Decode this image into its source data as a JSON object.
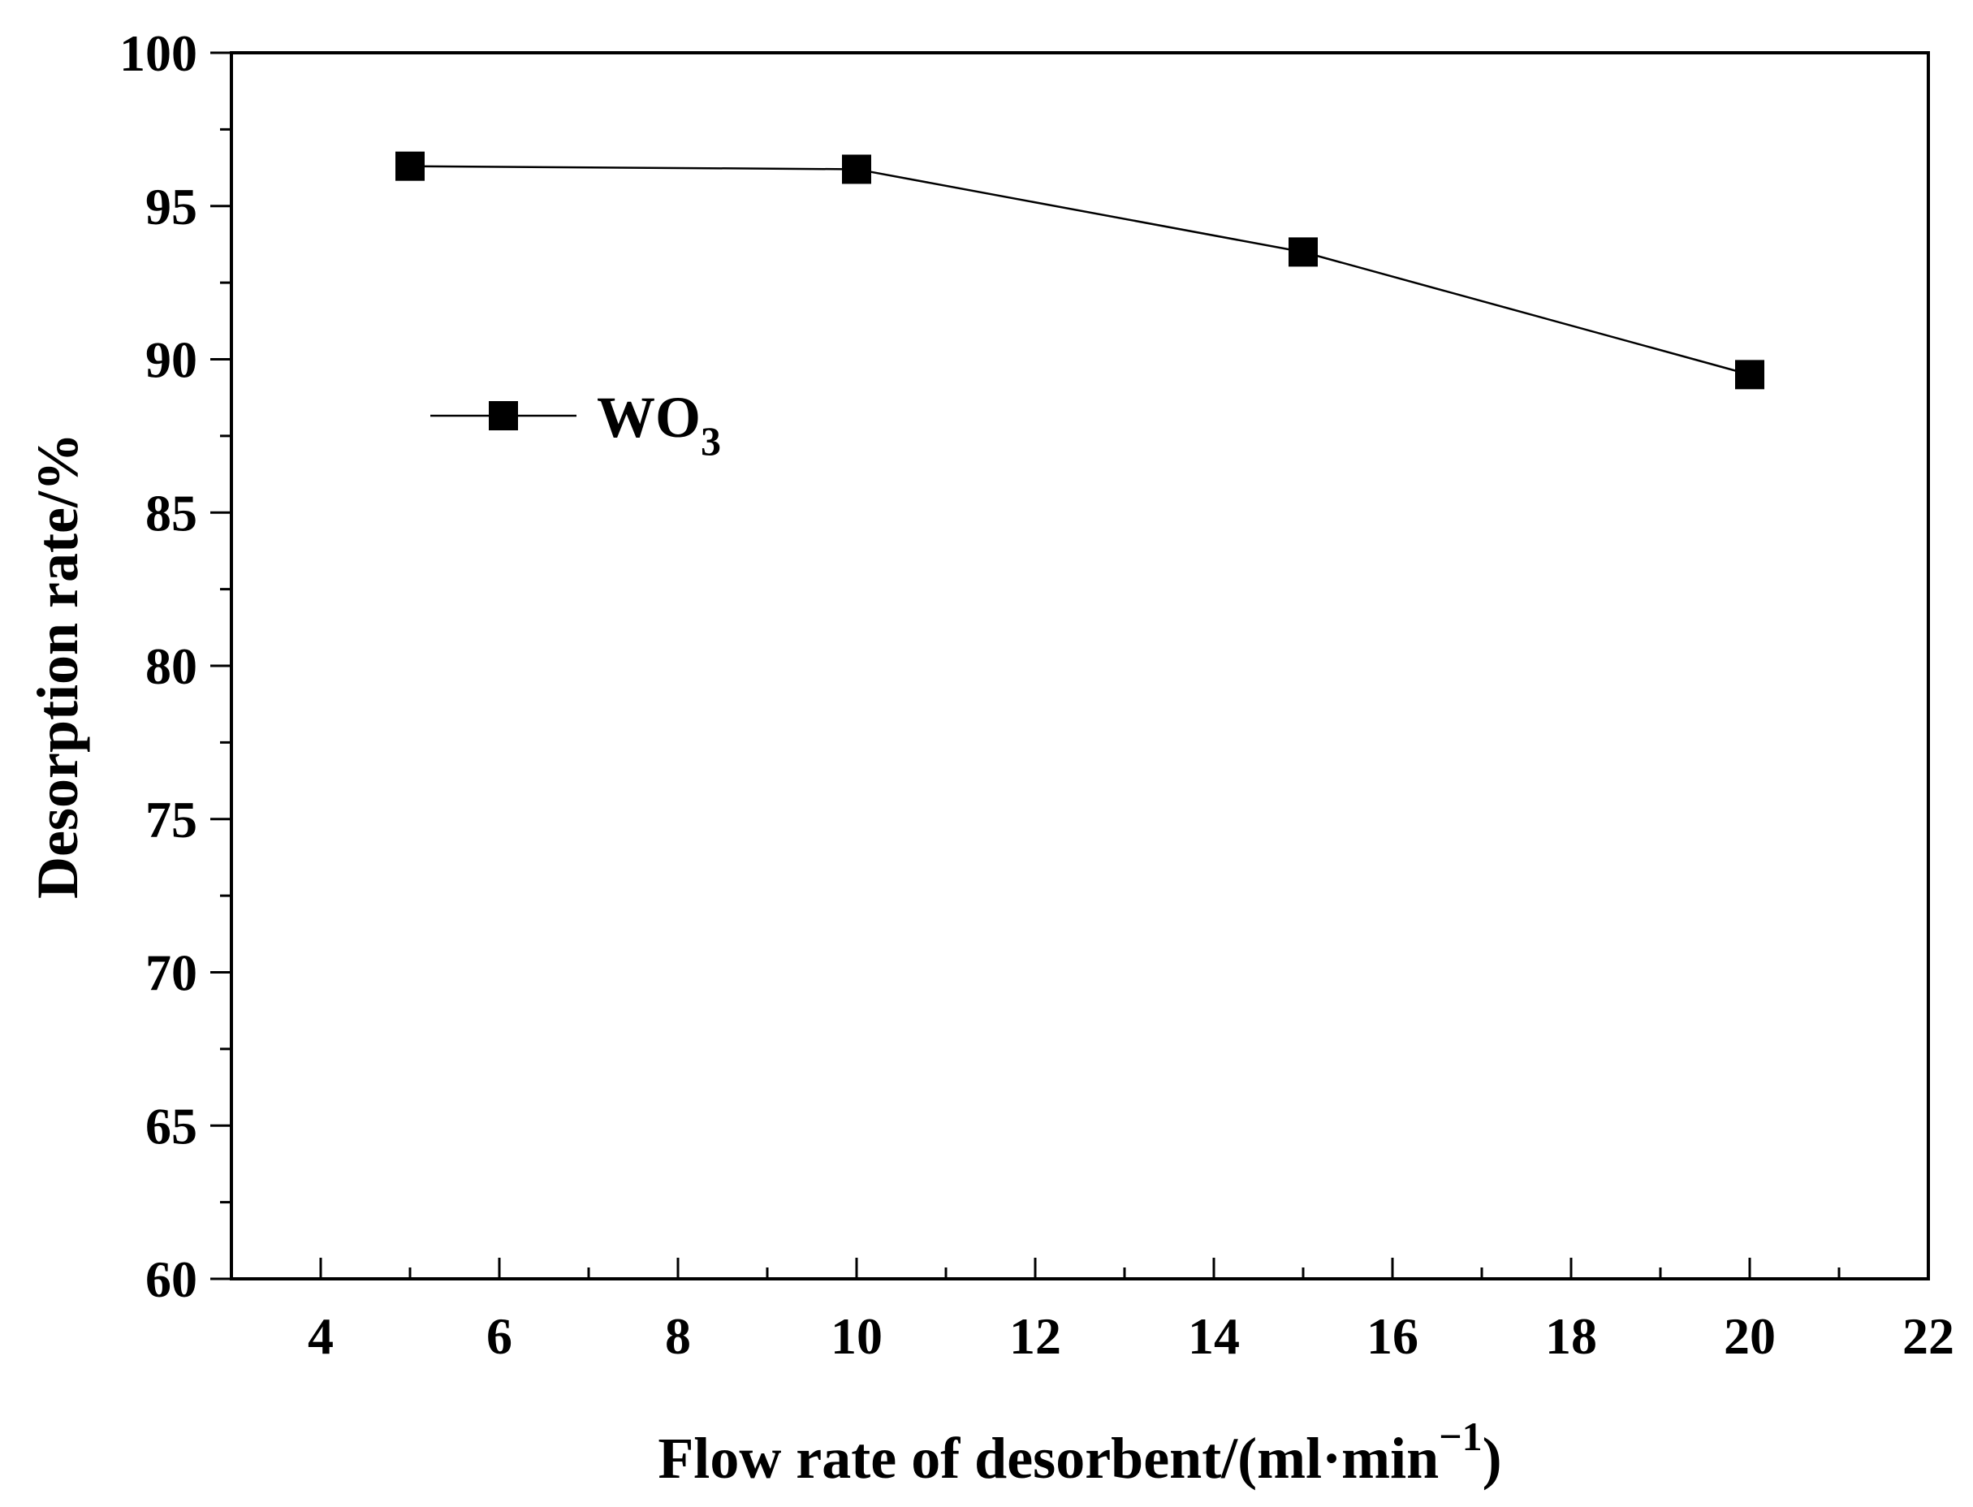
{
  "chart_data": {
    "type": "line",
    "title": "",
    "xlabel_main": "Flow rate of  desorbent/(ml·min",
    "xlabel_sup": "−1",
    "xlabel_close": ")",
    "ylabel": "Desorption rate/%",
    "xlim": [
      3,
      22
    ],
    "ylim": [
      60,
      100
    ],
    "x_ticks": [
      4,
      6,
      8,
      10,
      12,
      14,
      16,
      18,
      20,
      22
    ],
    "y_ticks": [
      60,
      65,
      70,
      75,
      80,
      85,
      90,
      95,
      100
    ],
    "grid": false,
    "legend_position": "left-middle-upper",
    "series": [
      {
        "name_main": "WO",
        "name_sub": "3",
        "marker": "square",
        "color": "#000000",
        "x": [
          5,
          10,
          15,
          20
        ],
        "y": [
          96.3,
          96.2,
          93.5,
          89.5
        ]
      }
    ]
  }
}
